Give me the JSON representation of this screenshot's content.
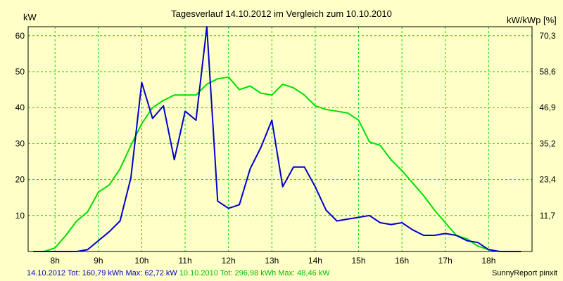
{
  "chart_data": {
    "type": "line",
    "title": "Tagesverlauf 14.10.2012 im Vergleich zum 10.10.2010",
    "ylabel_left": "kW",
    "ylabel_right": "kW/kWp [%]",
    "xlabel": "",
    "x_ticks": [
      "8h",
      "9h",
      "10h",
      "11h",
      "12h",
      "13h",
      "14h",
      "15h",
      "16h",
      "17h",
      "18h"
    ],
    "y_ticks_left": [
      "10",
      "20",
      "30",
      "40",
      "50",
      "60"
    ],
    "y_ticks_right": [
      "11,7",
      "23,4",
      "35,2",
      "46,9",
      "58,6",
      "70,3"
    ],
    "xlim": [
      7.38,
      19.0
    ],
    "ylim": [
      0,
      62.5
    ],
    "grid": true,
    "series": [
      {
        "name": "14.10.2012",
        "color": "#0000cc",
        "x": [
          7.5,
          7.75,
          8.0,
          8.25,
          8.5,
          8.75,
          9.0,
          9.25,
          9.5,
          9.75,
          10.0,
          10.25,
          10.5,
          10.75,
          11.0,
          11.25,
          11.5,
          11.75,
          12.0,
          12.25,
          12.5,
          12.75,
          13.0,
          13.25,
          13.5,
          13.75,
          14.0,
          14.25,
          14.5,
          14.75,
          15.0,
          15.25,
          15.5,
          15.75,
          16.0,
          16.25,
          16.5,
          16.75,
          17.0,
          17.25,
          17.5,
          17.75,
          18.0,
          18.25,
          18.5,
          18.75
        ],
        "y": [
          0.0,
          0.0,
          0.0,
          0.0,
          0.0,
          0.5,
          3.0,
          5.5,
          8.5,
          20.5,
          47.0,
          37.0,
          40.5,
          25.5,
          39.0,
          36.5,
          62.5,
          14.0,
          12.0,
          13.0,
          23.0,
          29.0,
          36.5,
          18.0,
          23.5,
          23.5,
          18.0,
          11.5,
          8.5,
          9.0,
          9.5,
          10.0,
          8.0,
          7.5,
          8.0,
          6.0,
          4.5,
          4.5,
          5.0,
          4.5,
          3.0,
          2.5,
          0.5,
          0.0,
          0.0,
          0.0
        ]
      },
      {
        "name": "10.10.2010",
        "color": "#00e000",
        "x": [
          7.5,
          7.75,
          8.0,
          8.25,
          8.5,
          8.75,
          9.0,
          9.25,
          9.5,
          9.75,
          10.0,
          10.25,
          10.5,
          10.75,
          11.0,
          11.25,
          11.5,
          11.75,
          12.0,
          12.25,
          12.5,
          12.75,
          13.0,
          13.25,
          13.5,
          13.75,
          14.0,
          14.25,
          14.5,
          14.75,
          15.0,
          15.25,
          15.5,
          15.75,
          16.0,
          16.25,
          16.5,
          16.75,
          17.0,
          17.25,
          17.5,
          17.75,
          18.0,
          18.25,
          18.5,
          18.75
        ],
        "y": [
          0.0,
          0.0,
          1.0,
          4.5,
          8.5,
          11.0,
          16.5,
          18.5,
          23.0,
          29.5,
          35.5,
          40.0,
          42.0,
          43.5,
          43.5,
          43.5,
          46.5,
          48.0,
          48.5,
          45.0,
          46.0,
          44.0,
          43.5,
          46.5,
          45.5,
          43.5,
          40.5,
          39.5,
          39.0,
          38.5,
          36.5,
          30.5,
          29.5,
          25.5,
          22.5,
          19.0,
          15.5,
          11.5,
          8.0,
          4.5,
          3.5,
          1.5,
          0.5,
          0.0,
          0.0,
          0.0
        ]
      }
    ]
  },
  "footer": {
    "series1_label": "14.10.2012 Tot: 160,79 kWh Max: 62,72 kW",
    "series2_label": "10.10.2010 Tot: 296,98 kWh Max: 48,46 kW",
    "credit": "SunnyReport pinxit"
  }
}
